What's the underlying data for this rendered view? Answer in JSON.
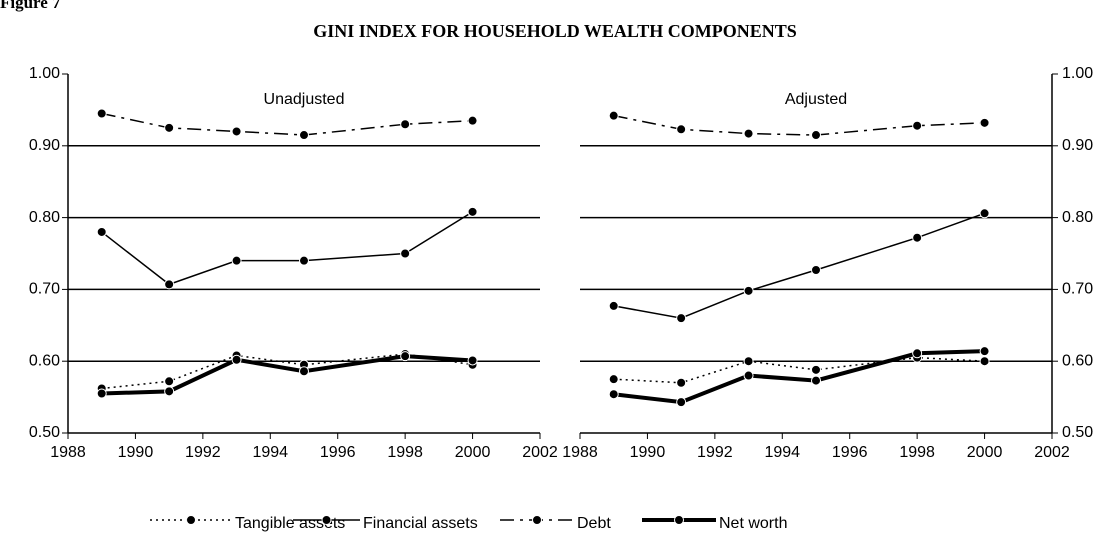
{
  "figure_label": "Figure 7",
  "title": "GINI INDEX FOR HOUSEHOLD WEALTH COMPONENTS",
  "chart_data": [
    {
      "type": "line",
      "title": "Unadjusted",
      "yaxis_side": "left",
      "grid": true,
      "x": [
        1989,
        1991,
        1993,
        1995,
        1998,
        2000
      ],
      "xlim": [
        1988,
        2002
      ],
      "xticks": [
        1988,
        1990,
        1992,
        1994,
        1996,
        1998,
        2000,
        2002
      ],
      "ylim": [
        0.5,
        1.0
      ],
      "yticks": [
        {
          "value": 0.5,
          "label": "0.50"
        },
        {
          "value": 0.6,
          "label": "0.60"
        },
        {
          "value": 0.7,
          "label": "0.70"
        },
        {
          "value": 0.8,
          "label": "0.80"
        },
        {
          "value": 0.9,
          "label": "0.90"
        },
        {
          "value": 1.0,
          "label": "1.00"
        }
      ],
      "series": [
        {
          "name": "Tangible assets",
          "color": "#000000",
          "line_style": "dotted",
          "values": [
            0.562,
            0.572,
            0.608,
            0.595,
            0.61,
            0.595
          ]
        },
        {
          "name": "Financial assets",
          "color": "#000000",
          "line_style": "solid",
          "values": [
            0.78,
            0.707,
            0.74,
            0.74,
            0.75,
            0.808
          ]
        },
        {
          "name": "Debt",
          "color": "#000000",
          "line_style": "dash-dot",
          "values": [
            0.945,
            0.925,
            0.92,
            0.915,
            0.93,
            0.935
          ]
        },
        {
          "name": "Net worth",
          "color": "#000000",
          "line_style": "thick",
          "values": [
            0.555,
            0.558,
            0.602,
            0.586,
            0.607,
            0.601
          ]
        }
      ]
    },
    {
      "type": "line",
      "title": "Adjusted",
      "yaxis_side": "right",
      "grid": true,
      "x": [
        1989,
        1991,
        1993,
        1995,
        1998,
        2000
      ],
      "xlim": [
        1988,
        2002
      ],
      "xticks": [
        1988,
        1990,
        1992,
        1994,
        1996,
        1998,
        2000,
        2002
      ],
      "ylim": [
        0.5,
        1.0
      ],
      "yticks": [
        {
          "value": 0.5,
          "label": "0.50"
        },
        {
          "value": 0.6,
          "label": "0.60"
        },
        {
          "value": 0.7,
          "label": "0.70"
        },
        {
          "value": 0.8,
          "label": "0.80"
        },
        {
          "value": 0.9,
          "label": "0.90"
        },
        {
          "value": 1.0,
          "label": "1.00"
        }
      ],
      "series": [
        {
          "name": "Tangible assets",
          "color": "#000000",
          "line_style": "dotted",
          "values": [
            0.575,
            0.57,
            0.6,
            0.588,
            0.605,
            0.6
          ]
        },
        {
          "name": "Financial assets",
          "color": "#000000",
          "line_style": "solid",
          "values": [
            0.677,
            0.66,
            0.698,
            0.727,
            0.772,
            0.806
          ]
        },
        {
          "name": "Debt",
          "color": "#000000",
          "line_style": "dash-dot",
          "values": [
            0.942,
            0.923,
            0.917,
            0.915,
            0.928,
            0.932
          ]
        },
        {
          "name": "Net worth",
          "color": "#000000",
          "line_style": "thick",
          "values": [
            0.554,
            0.543,
            0.58,
            0.573,
            0.611,
            0.614
          ]
        }
      ]
    }
  ]
}
